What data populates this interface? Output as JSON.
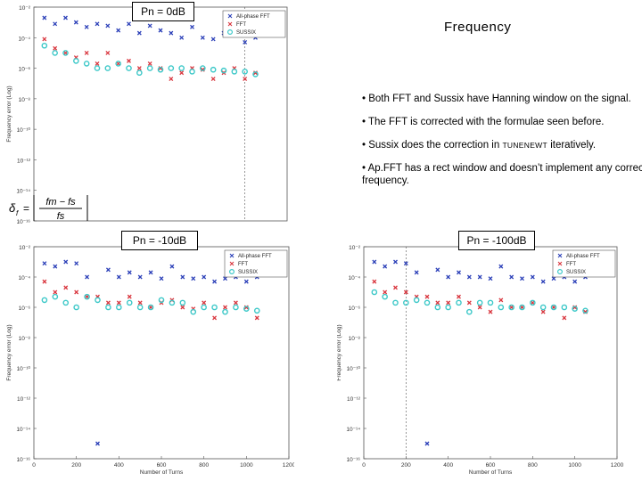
{
  "panels": {
    "top": {
      "label": "Pn = 0dB"
    },
    "bottom_left": {
      "label": "Pn = -10dB"
    },
    "bottom_right": {
      "label": "Pn = -100dB"
    }
  },
  "slide": {
    "title": "Frequency",
    "bullets": [
      "• Both FFT and Sussix have Hanning window on the signal.",
      "• The FFT is corrected with the formulae seen before.",
      "• Ap.FFT has a rect window and doesn’t implement any correction in frequency."
    ],
    "bullet3_prefix": "• Sussix does the correction in ",
    "bullet3_code": "TUNENEWT",
    "bullet3_suffix": " iteratively."
  },
  "formula": {
    "lhs": "δ",
    "lhs_sub": "f",
    "num": "fm − fs",
    "den": "fs"
  },
  "colors": {
    "apfft": "#2b3fb8",
    "fft": "#d9363e",
    "sussix": "#3cc8c8"
  },
  "chart_data": [
    {
      "id": "top",
      "type": "scatter",
      "ylabel": "Frequency error (Log)",
      "xlabel": "",
      "log_y": true,
      "xlim": [
        0,
        1200
      ],
      "ylim": [
        1e-16,
        0.01
      ],
      "yticks": [
        "10⁻²",
        "10⁻⁴",
        "10⁻⁶",
        "10⁻⁸",
        "10⁻¹⁰",
        "10⁻¹²",
        "10⁻¹⁴",
        "10⁻¹⁶"
      ],
      "xticks": [],
      "legend": [
        "All-phase FFT",
        "FFT",
        "SUSSIX"
      ],
      "legend_position": "top-right",
      "series": [
        {
          "name": "All-phase FFT",
          "marker": "x",
          "color": "#2b3fb8",
          "x": [
            50,
            100,
            150,
            200,
            250,
            300,
            350,
            400,
            450,
            500,
            550,
            600,
            650,
            700,
            750,
            800,
            850,
            900,
            950,
            1000,
            1050
          ],
          "y": [
            0.002,
            0.0008,
            0.002,
            0.001,
            0.0005,
            0.0008,
            0.0006,
            0.0003,
            0.0008,
            0.0002,
            0.0006,
            0.0003,
            0.0002,
            0.0001,
            0.0005,
            0.0001,
            8e-05,
            0.0002,
            0.001,
            5e-05,
            0.0001
          ]
        },
        {
          "name": "FFT",
          "marker": "x",
          "color": "#d9363e",
          "x": [
            50,
            100,
            150,
            200,
            250,
            300,
            350,
            400,
            450,
            500,
            550,
            600,
            650,
            700,
            750,
            800,
            850,
            900,
            950,
            1000,
            1050
          ],
          "y": [
            8e-05,
            2e-05,
            1e-05,
            5e-06,
            1e-05,
            2e-06,
            1e-05,
            2e-06,
            3e-06,
            1e-06,
            2e-06,
            1e-06,
            2e-07,
            5e-07,
            1e-06,
            8e-07,
            2e-07,
            5e-07,
            1e-06,
            2e-07,
            5e-07
          ]
        },
        {
          "name": "SUSSIX",
          "marker": "o",
          "color": "#3cc8c8",
          "x": [
            50,
            100,
            150,
            200,
            250,
            300,
            350,
            400,
            450,
            500,
            550,
            600,
            650,
            700,
            750,
            800,
            850,
            900,
            950,
            1000,
            1050
          ],
          "y": [
            3e-05,
            1e-05,
            1e-05,
            3e-06,
            2e-06,
            1e-06,
            1e-06,
            2e-06,
            1e-06,
            5e-07,
            1e-06,
            8e-07,
            1e-06,
            1e-06,
            6e-07,
            1e-06,
            8e-07,
            7e-07,
            6e-07,
            6e-07,
            4e-07
          ]
        }
      ]
    },
    {
      "id": "bottom_left",
      "type": "scatter",
      "ylabel": "Frequency error (Log)",
      "xlabel": "Number of Turns",
      "log_y": true,
      "xlim": [
        0,
        1200
      ],
      "ylim": [
        1e-16,
        0.01
      ],
      "xticks": [
        "0",
        "200",
        "400",
        "600",
        "800",
        "1000",
        "1200"
      ],
      "yticks": [
        "10⁻²",
        "10⁻⁴",
        "10⁻⁶",
        "10⁻⁸",
        "10⁻¹⁰",
        "10⁻¹²",
        "10⁻¹⁴",
        "10⁻¹⁶"
      ],
      "legend": [
        "All-phase FFT",
        "FFT",
        "SUSSIX"
      ],
      "legend_position": "top-right",
      "series": [
        {
          "name": "All-phase FFT",
          "marker": "x",
          "color": "#2b3fb8",
          "x": [
            50,
            100,
            150,
            200,
            250,
            300,
            350,
            400,
            450,
            500,
            550,
            600,
            650,
            700,
            750,
            800,
            850,
            900,
            950,
            1000,
            1050
          ],
          "y": [
            0.0008,
            0.0005,
            0.001,
            0.0008,
            0.0001,
            1e-15,
            0.0003,
            0.0001,
            0.0002,
            0.0001,
            0.0002,
            8e-05,
            0.0005,
            0.0001,
            8e-05,
            0.0001,
            5e-05,
            8e-05,
            0.0001,
            5e-05,
            0.0001
          ]
        },
        {
          "name": "FFT",
          "marker": "x",
          "color": "#d9363e",
          "x": [
            50,
            100,
            150,
            200,
            250,
            300,
            350,
            400,
            450,
            500,
            550,
            600,
            650,
            700,
            750,
            800,
            850,
            900,
            950,
            1000,
            1050
          ],
          "y": [
            5e-05,
            1e-05,
            2e-05,
            1e-05,
            5e-06,
            5e-06,
            2e-06,
            2e-06,
            5e-06,
            2e-06,
            1e-06,
            2e-06,
            3e-06,
            1e-06,
            8e-07,
            2e-06,
            2e-07,
            1e-06,
            2e-06,
            1e-06,
            2e-07
          ]
        },
        {
          "name": "SUSSIX",
          "marker": "o",
          "color": "#3cc8c8",
          "x": [
            50,
            100,
            150,
            200,
            250,
            300,
            350,
            400,
            450,
            500,
            550,
            600,
            650,
            700,
            750,
            800,
            850,
            900,
            950,
            1000,
            1050
          ],
          "y": [
            3e-06,
            5e-06,
            2e-06,
            1e-06,
            5e-06,
            3e-06,
            1e-06,
            1e-06,
            2e-06,
            1e-06,
            1e-06,
            3e-06,
            2e-06,
            2e-06,
            5e-07,
            1e-06,
            1e-06,
            5e-07,
            1e-06,
            8e-07,
            6e-07
          ]
        }
      ]
    },
    {
      "id": "bottom_right",
      "type": "scatter",
      "ylabel": "Frequency error (Log)",
      "xlabel": "Number of Turns",
      "log_y": true,
      "xlim": [
        0,
        1200
      ],
      "ylim": [
        1e-16,
        0.01
      ],
      "xticks": [
        "0",
        "200",
        "400",
        "600",
        "800",
        "1000",
        "1200"
      ],
      "yticks": [
        "10⁻²",
        "10⁻⁴",
        "10⁻⁶",
        "10⁻⁸",
        "10⁻¹⁰",
        "10⁻¹²",
        "10⁻¹⁴",
        "10⁻¹⁶"
      ],
      "legend": [
        "All-phase FFT",
        "FFT",
        "SUSSIX"
      ],
      "legend_position": "top-right",
      "series": [
        {
          "name": "All-phase FFT",
          "marker": "x",
          "color": "#2b3fb8",
          "x": [
            50,
            100,
            150,
            200,
            250,
            300,
            350,
            400,
            450,
            500,
            550,
            600,
            650,
            700,
            750,
            800,
            850,
            900,
            950,
            1000,
            1050
          ],
          "y": [
            0.001,
            0.0005,
            0.001,
            0.0008,
            0.0002,
            1e-15,
            0.0003,
            0.0001,
            0.0002,
            0.0001,
            0.0001,
            8e-05,
            0.0005,
            0.0001,
            8e-05,
            0.0001,
            5e-05,
            8e-05,
            0.0001,
            5e-05,
            0.0001
          ]
        },
        {
          "name": "FFT",
          "marker": "x",
          "color": "#d9363e",
          "x": [
            50,
            100,
            150,
            200,
            250,
            300,
            350,
            400,
            450,
            500,
            550,
            600,
            650,
            700,
            750,
            800,
            850,
            900,
            950,
            1000,
            1050
          ],
          "y": [
            5e-05,
            1e-05,
            2e-05,
            1e-05,
            5e-06,
            5e-06,
            2e-06,
            2e-06,
            5e-06,
            2e-06,
            1e-06,
            5e-07,
            3e-06,
            1e-06,
            1e-06,
            2e-06,
            5e-07,
            1e-06,
            2e-07,
            1e-06,
            5e-07
          ]
        },
        {
          "name": "SUSSIX",
          "marker": "o",
          "color": "#3cc8c8",
          "x": [
            50,
            100,
            150,
            200,
            250,
            300,
            350,
            400,
            450,
            500,
            550,
            600,
            650,
            700,
            750,
            800,
            850,
            900,
            950,
            1000,
            1050
          ],
          "y": [
            1e-05,
            5e-06,
            2e-06,
            2e-06,
            3e-06,
            2e-06,
            1e-06,
            1e-06,
            2e-06,
            5e-07,
            2e-06,
            2e-06,
            1e-06,
            1e-06,
            1e-06,
            2e-06,
            1e-06,
            1e-06,
            1e-06,
            8e-07,
            6e-07
          ]
        }
      ]
    }
  ]
}
